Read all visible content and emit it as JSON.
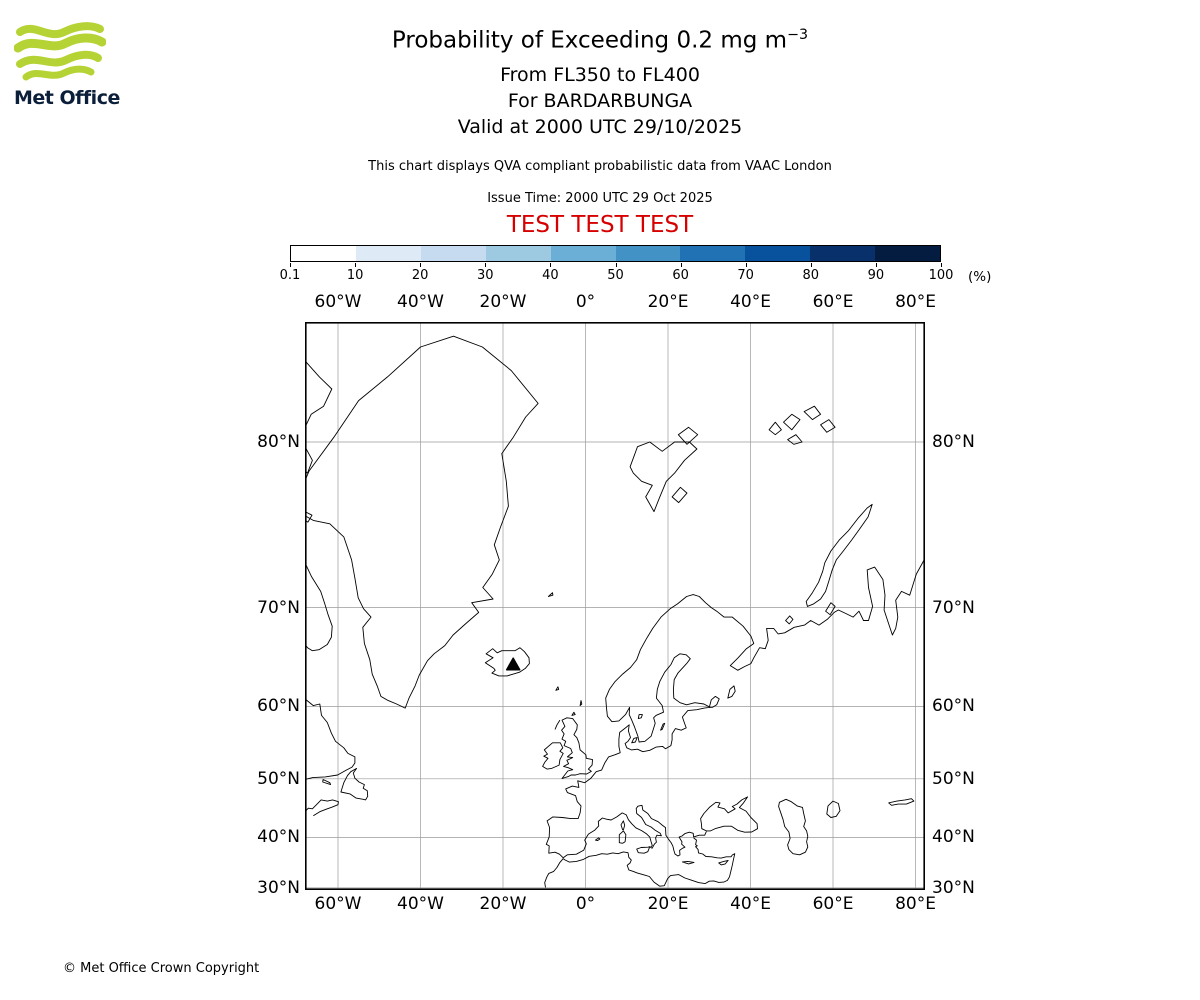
{
  "branding": {
    "logo_text": "Met Office",
    "logo_green": "#b5d334",
    "logo_text_color": "#0b1f3a"
  },
  "header": {
    "title_prefix": "Probability of Exceeding 0.2 mg m",
    "title_superscript": "−3",
    "flight_levels": "From FL350 to FL400",
    "volcano": "For BARDARBUNGA",
    "valid": "Valid at 2000 UTC 29/10/2025",
    "note": "This chart displays QVA compliant probabilistic data from VAAC London",
    "issue_time": "Issue Time: 2000 UTC 29 Oct 2025",
    "test_banner": "TEST TEST TEST",
    "test_color": "#d60000"
  },
  "legend": {
    "tick_labels": [
      "0.1",
      "10",
      "20",
      "30",
      "40",
      "50",
      "60",
      "70",
      "80",
      "90",
      "100"
    ],
    "unit_label": "(%)",
    "colors": [
      "#ffffff",
      "#deebf7",
      "#c6dbef",
      "#9ecae1",
      "#6baed6",
      "#4292c6",
      "#2171b5",
      "#08519c",
      "#08306b",
      "#041c40"
    ]
  },
  "map": {
    "lon_labels": [
      "60°W",
      "40°W",
      "20°W",
      "0°",
      "20°E",
      "40°E",
      "60°E",
      "80°E"
    ],
    "lat_labels": [
      "80°N",
      "70°N",
      "60°N",
      "50°N",
      "40°N",
      "30°N"
    ],
    "volcano_marker": "BARDARBUNGA"
  },
  "footer": {
    "copyright": "© Met Office Crown Copyright"
  }
}
